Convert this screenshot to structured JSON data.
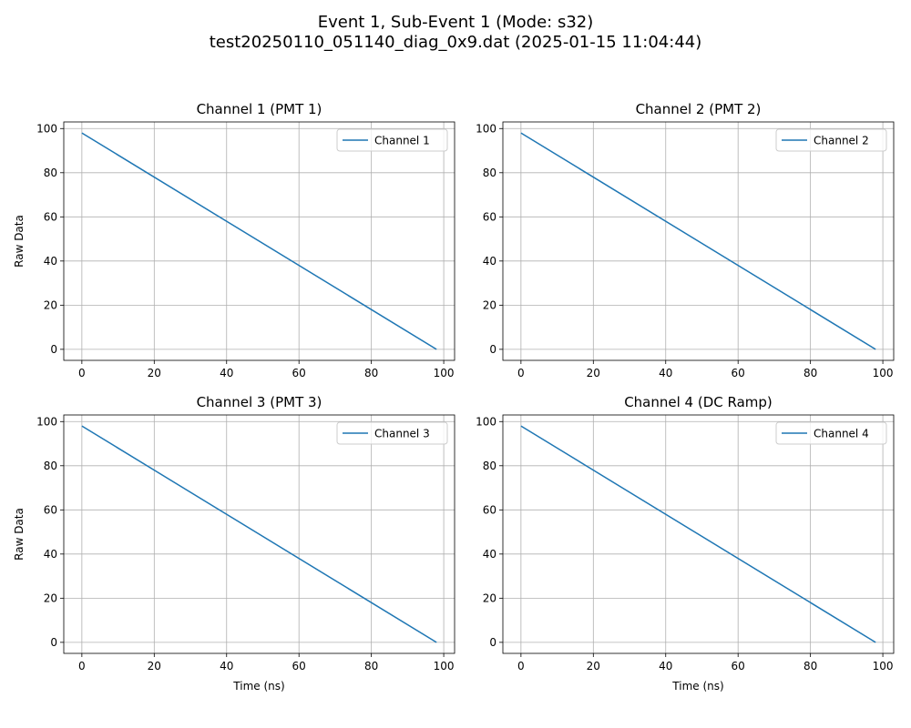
{
  "figure": {
    "title_line1": "Event 1, Sub-Event 1 (Mode: s32)",
    "title_line2": "test20250110_051140_diag_0x9.dat (2025-01-15 11:04:44)"
  },
  "colors": {
    "line": "#1f77b4",
    "grid": "#b0b0b0",
    "axis": "#000000",
    "legend_border": "#cccccc"
  },
  "chart_data": [
    {
      "type": "line",
      "title": "Channel 1 (PMT 1)",
      "xlabel": "",
      "ylabel": "Raw Data",
      "xlim": [
        -5,
        103
      ],
      "ylim": [
        -5,
        103
      ],
      "xticks": [
        0,
        20,
        40,
        60,
        80,
        100
      ],
      "yticks": [
        0,
        20,
        40,
        60,
        80,
        100
      ],
      "grid": true,
      "legend": "top-right",
      "series": [
        {
          "name": "Channel 1",
          "x": [
            0,
            98
          ],
          "y": [
            98,
            0
          ]
        }
      ]
    },
    {
      "type": "line",
      "title": "Channel 2 (PMT 2)",
      "xlabel": "",
      "ylabel": "",
      "xlim": [
        -5,
        103
      ],
      "ylim": [
        -5,
        103
      ],
      "xticks": [
        0,
        20,
        40,
        60,
        80,
        100
      ],
      "yticks": [
        0,
        20,
        40,
        60,
        80,
        100
      ],
      "grid": true,
      "legend": "top-right",
      "series": [
        {
          "name": "Channel 2",
          "x": [
            0,
            98
          ],
          "y": [
            98,
            0
          ]
        }
      ]
    },
    {
      "type": "line",
      "title": "Channel 3 (PMT 3)",
      "xlabel": "Time (ns)",
      "ylabel": "Raw Data",
      "xlim": [
        -5,
        103
      ],
      "ylim": [
        -5,
        103
      ],
      "xticks": [
        0,
        20,
        40,
        60,
        80,
        100
      ],
      "yticks": [
        0,
        20,
        40,
        60,
        80,
        100
      ],
      "grid": true,
      "legend": "top-right",
      "series": [
        {
          "name": "Channel 3",
          "x": [
            0,
            98
          ],
          "y": [
            98,
            0
          ]
        }
      ]
    },
    {
      "type": "line",
      "title": "Channel 4 (DC Ramp)",
      "xlabel": "Time (ns)",
      "ylabel": "",
      "xlim": [
        -5,
        103
      ],
      "ylim": [
        -5,
        103
      ],
      "xticks": [
        0,
        20,
        40,
        60,
        80,
        100
      ],
      "yticks": [
        0,
        20,
        40,
        60,
        80,
        100
      ],
      "grid": true,
      "legend": "top-right",
      "series": [
        {
          "name": "Channel 4",
          "x": [
            0,
            98
          ],
          "y": [
            98,
            0
          ]
        }
      ]
    }
  ]
}
